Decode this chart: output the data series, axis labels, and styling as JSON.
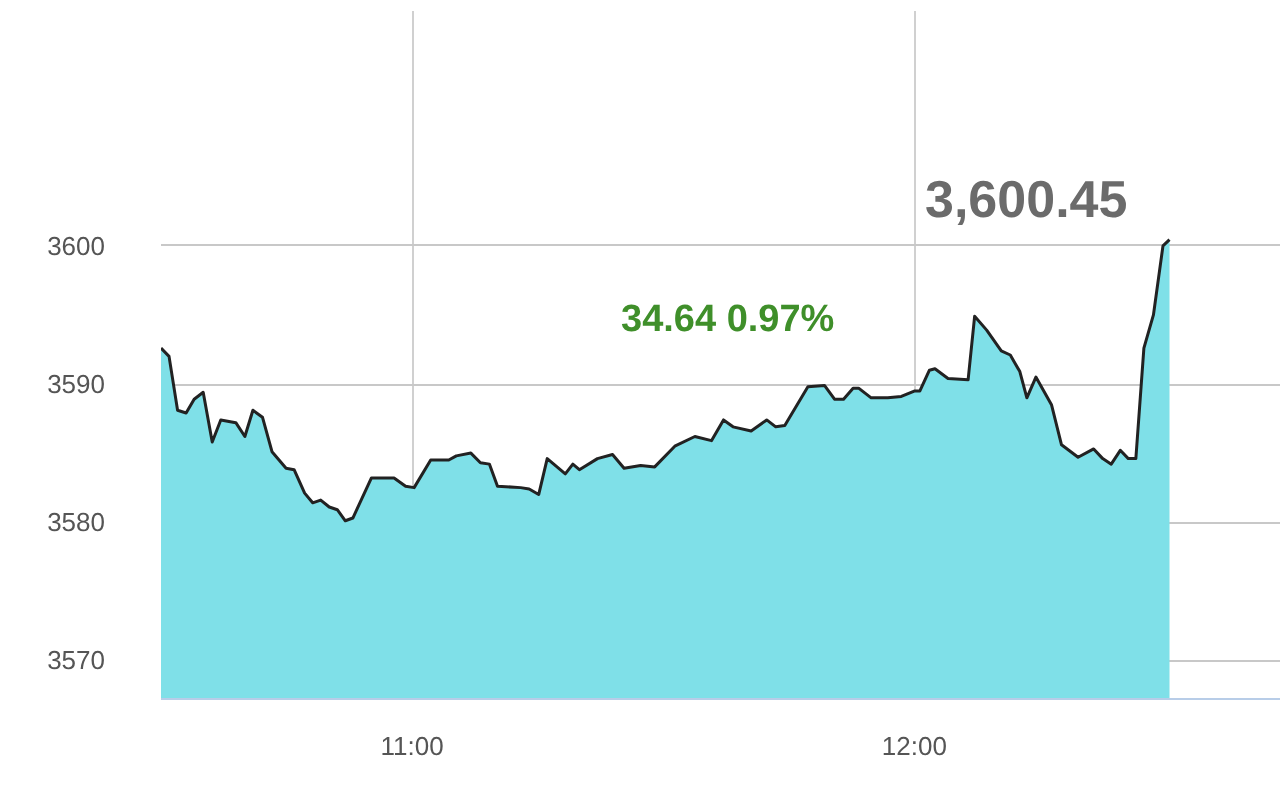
{
  "chart_data": {
    "type": "area",
    "x": [
      10.5,
      10.516,
      10.533,
      10.55,
      10.566,
      10.584,
      10.602,
      10.619,
      10.649,
      10.667,
      10.683,
      10.702,
      10.721,
      10.749,
      10.765,
      10.786,
      10.802,
      10.818,
      10.835,
      10.851,
      10.867,
      10.882,
      10.919,
      10.964,
      10.987,
      11.004,
      11.037,
      11.073,
      11.088,
      11.117,
      11.136,
      11.154,
      11.17,
      11.216,
      11.233,
      11.252,
      11.269,
      11.305,
      11.32,
      11.333,
      11.369,
      11.399,
      11.422,
      11.455,
      11.483,
      11.523,
      11.563,
      11.596,
      11.62,
      11.639,
      11.675,
      11.706,
      11.724,
      11.742,
      11.788,
      11.821,
      11.841,
      11.859,
      11.878,
      11.889,
      11.914,
      11.947,
      11.974,
      12.001,
      12.011,
      12.03,
      12.041,
      12.067,
      12.107,
      12.12,
      12.144,
      12.173,
      12.191,
      12.21,
      12.224,
      12.242,
      12.273,
      12.293,
      12.326,
      12.357,
      12.375,
      12.392,
      12.41,
      12.426,
      12.441,
      12.457,
      12.476,
      12.495,
      12.508
    ],
    "series": [
      {
        "color": "#7fe0e8",
        "values": [
          3592.6,
          3592.0,
          3588.1,
          3587.9,
          3588.9,
          3589.4,
          3585.8,
          3587.4,
          3587.2,
          3586.2,
          3588.1,
          3587.6,
          3585.1,
          3583.9,
          3583.8,
          3582.1,
          3581.4,
          3581.6,
          3581.1,
          3580.9,
          3580.1,
          3580.3,
          3583.2,
          3583.2,
          3582.6,
          3582.5,
          3584.5,
          3584.5,
          3584.8,
          3585.0,
          3584.3,
          3584.2,
          3582.6,
          3582.5,
          3582.4,
          3582.0,
          3584.6,
          3583.5,
          3584.2,
          3583.8,
          3584.6,
          3584.9,
          3583.9,
          3584.1,
          3584.0,
          3585.5,
          3586.2,
          3585.9,
          3587.4,
          3586.9,
          3586.6,
          3587.4,
          3586.9,
          3587.0,
          3589.8,
          3589.9,
          3588.9,
          3588.9,
          3589.7,
          3589.7,
          3589.0,
          3589.0,
          3589.1,
          3589.5,
          3589.5,
          3591.0,
          3591.1,
          3590.4,
          3590.3,
          3594.9,
          3593.9,
          3592.4,
          3592.1,
          3590.9,
          3589.0,
          3590.5,
          3588.5,
          3585.6,
          3584.7,
          3585.3,
          3584.6,
          3584.2,
          3585.2,
          3584.6,
          3584.6,
          3592.6,
          3595.0,
          3600.0,
          3600.45
        ]
      }
    ],
    "xlim": [
      10.5,
      12.73
    ],
    "ylim": [
      3567.2,
      3617
    ],
    "xticks": [
      {
        "value": 11,
        "label": "11:00"
      },
      {
        "value": 12,
        "label": "12:00"
      }
    ],
    "yticks": [
      3570,
      3580,
      3590,
      3600
    ],
    "grid": true,
    "annotations": [
      "3,600.45",
      "34.64  0.97%"
    ]
  }
}
